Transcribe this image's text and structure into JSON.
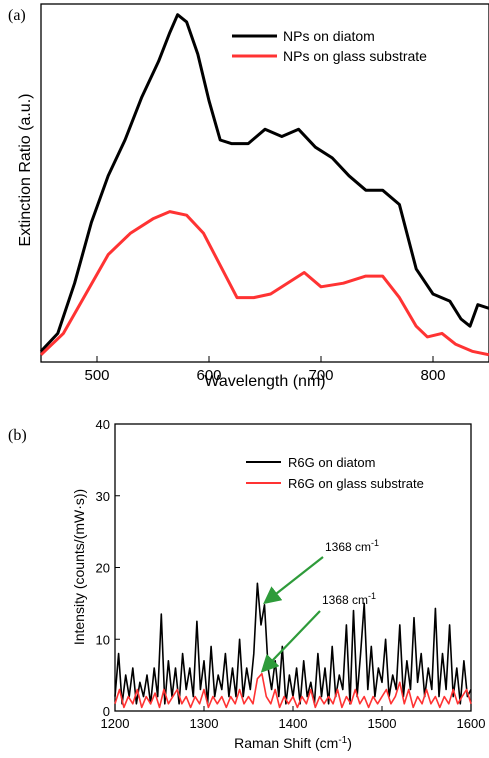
{
  "chart_data": [
    {
      "panel_label": "(a)",
      "type": "line",
      "xlabel": "Wavelength (nm)",
      "ylabel": "Extinction Ratio (a.u.)",
      "xlim": [
        450,
        850
      ],
      "ylim": [
        0,
        1
      ],
      "xticks": [
        500,
        600,
        700,
        800
      ],
      "legend": "top-right",
      "grid": false,
      "series": [
        {
          "name": "NPs on diatom",
          "color": "#000000",
          "x": [
            450,
            465,
            480,
            495,
            510,
            525,
            540,
            555,
            565,
            572,
            580,
            590,
            600,
            610,
            620,
            635,
            650,
            665,
            680,
            695,
            710,
            725,
            740,
            755,
            770,
            785,
            800,
            815,
            825,
            833,
            840,
            850
          ],
          "y": [
            0.03,
            0.08,
            0.22,
            0.39,
            0.52,
            0.62,
            0.74,
            0.84,
            0.92,
            0.97,
            0.95,
            0.86,
            0.73,
            0.62,
            0.61,
            0.61,
            0.65,
            0.63,
            0.65,
            0.6,
            0.57,
            0.52,
            0.48,
            0.48,
            0.44,
            0.26,
            0.19,
            0.17,
            0.12,
            0.1,
            0.16,
            0.15
          ]
        },
        {
          "name": "NPs on glass substrate",
          "color": "#ff3333",
          "x": [
            450,
            470,
            490,
            510,
            530,
            550,
            565,
            580,
            595,
            610,
            625,
            640,
            655,
            670,
            685,
            700,
            720,
            740,
            755,
            770,
            785,
            795,
            808,
            820,
            835,
            850
          ],
          "y": [
            0.02,
            0.08,
            0.19,
            0.3,
            0.36,
            0.4,
            0.42,
            0.41,
            0.36,
            0.27,
            0.18,
            0.18,
            0.19,
            0.22,
            0.25,
            0.21,
            0.22,
            0.24,
            0.24,
            0.18,
            0.1,
            0.07,
            0.08,
            0.05,
            0.03,
            0.02
          ]
        }
      ]
    },
    {
      "panel_label": "(b)",
      "type": "line",
      "xlabel": "Raman Shift (cm⁻¹)",
      "ylabel": "Intensity (counts/(mW·s))",
      "xlim": [
        1200,
        1600
      ],
      "ylim": [
        0,
        40
      ],
      "xticks": [
        1200,
        1300,
        1400,
        1500,
        1600
      ],
      "yticks": [
        0,
        10,
        20,
        30,
        40
      ],
      "legend": "top-right",
      "grid": false,
      "series": [
        {
          "name": "R6G on diatom",
          "color": "#000000",
          "x": [
            1200,
            1204,
            1208,
            1212,
            1216,
            1220,
            1224,
            1228,
            1232,
            1236,
            1240,
            1244,
            1248,
            1252,
            1256,
            1260,
            1264,
            1268,
            1272,
            1276,
            1280,
            1284,
            1288,
            1292,
            1296,
            1300,
            1304,
            1308,
            1312,
            1316,
            1320,
            1324,
            1328,
            1332,
            1336,
            1340,
            1344,
            1348,
            1352,
            1356,
            1360,
            1364,
            1368,
            1372,
            1376,
            1380,
            1384,
            1388,
            1392,
            1396,
            1400,
            1404,
            1408,
            1412,
            1416,
            1420,
            1424,
            1428,
            1432,
            1436,
            1440,
            1444,
            1448,
            1452,
            1456,
            1460,
            1464,
            1468,
            1472,
            1476,
            1480,
            1484,
            1488,
            1492,
            1496,
            1500,
            1504,
            1508,
            1512,
            1516,
            1520,
            1524,
            1528,
            1532,
            1536,
            1540,
            1544,
            1548,
            1552,
            1556,
            1560,
            1564,
            1568,
            1572,
            1576,
            1580,
            1584,
            1588,
            1592,
            1596,
            1600
          ],
          "y": [
            2,
            8,
            1,
            5,
            2,
            6,
            1,
            4,
            2,
            5,
            1,
            6,
            2,
            13.5,
            1,
            7,
            2,
            6,
            1,
            8,
            3,
            6,
            2,
            12.5,
            3,
            7,
            1,
            9,
            2,
            5,
            3,
            8,
            2,
            6,
            2,
            10,
            2,
            6,
            3,
            8,
            17.8,
            12,
            14.8,
            6,
            3,
            7,
            2,
            9,
            1,
            5,
            2,
            6,
            1,
            7,
            2,
            4,
            1,
            8,
            2,
            6,
            1,
            9,
            2,
            5,
            3,
            12,
            1,
            14,
            2,
            8,
            15,
            3,
            9,
            2,
            6,
            4,
            10,
            2,
            5,
            3,
            12,
            2,
            7,
            3,
            13,
            4,
            8,
            2,
            6,
            3,
            14.3,
            2,
            8,
            3,
            12,
            2,
            6,
            1,
            7,
            2,
            3
          ]
        },
        {
          "name": "R6G on glass substrate",
          "color": "#ff3333",
          "x": [
            1200,
            1205,
            1210,
            1215,
            1220,
            1225,
            1230,
            1235,
            1240,
            1245,
            1250,
            1255,
            1260,
            1265,
            1270,
            1275,
            1280,
            1285,
            1290,
            1295,
            1300,
            1305,
            1310,
            1315,
            1320,
            1325,
            1330,
            1335,
            1340,
            1345,
            1350,
            1355,
            1360,
            1365,
            1370,
            1375,
            1380,
            1385,
            1390,
            1395,
            1400,
            1405,
            1410,
            1415,
            1420,
            1425,
            1430,
            1435,
            1440,
            1445,
            1450,
            1455,
            1460,
            1465,
            1470,
            1475,
            1480,
            1485,
            1490,
            1495,
            1500,
            1505,
            1510,
            1515,
            1520,
            1525,
            1530,
            1535,
            1540,
            1545,
            1550,
            1555,
            1560,
            1565,
            1570,
            1575,
            1580,
            1585,
            1590,
            1595,
            1600
          ],
          "y": [
            1,
            3,
            0.5,
            2,
            1,
            3,
            0.5,
            2,
            1,
            2.5,
            0.5,
            3,
            1,
            2,
            3,
            1,
            2,
            0.5,
            2,
            1,
            3,
            0.5,
            2,
            1,
            2,
            0.5,
            2,
            1,
            3,
            1,
            2,
            1,
            4.5,
            5.2,
            2,
            1,
            3,
            0.5,
            2,
            1,
            2,
            0.5,
            2,
            1,
            3,
            0.5,
            2,
            1,
            2,
            1,
            3,
            0.5,
            2,
            1,
            3,
            1,
            2,
            0.5,
            2,
            1,
            2,
            3,
            1,
            2,
            4,
            1,
            3,
            0.5,
            2,
            1,
            3,
            1,
            2,
            0.5,
            2,
            1,
            3,
            1,
            2,
            3,
            1
          ]
        }
      ],
      "annotations": [
        {
          "text": "1368 cm",
          "superscript": "-1",
          "target_x": 1368,
          "target_y": 15
        },
        {
          "text": "1368 cm",
          "superscript": "-1",
          "target_x": 1365,
          "target_y": 5.5
        }
      ],
      "arrow_color": "#2e9b3a"
    }
  ]
}
